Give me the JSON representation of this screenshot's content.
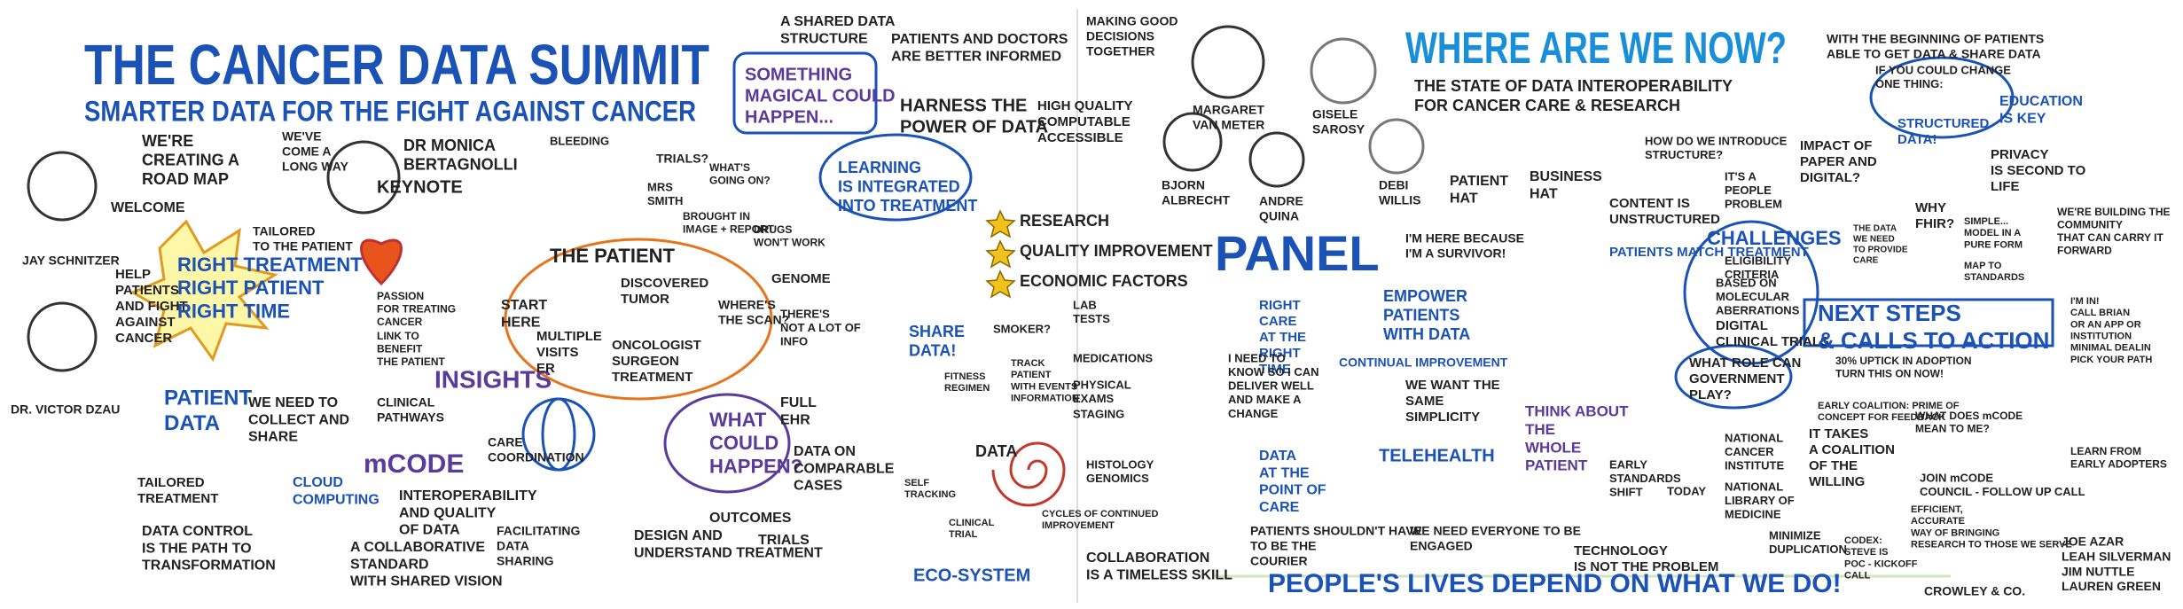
{
  "title": "THE CANCER DATA SUMMIT",
  "subtitle": "SMARTER DATA FOR THE FIGHT AGAINST CANCER",
  "section_title": "WHERE ARE WE NOW?",
  "section_subtitle": [
    "THE STATE OF DATA INTEROPERABILITY",
    "FOR CANCER CARE & RESEARCH"
  ],
  "notes": [
    [
      "WELCOME"
    ],
    [
      "JAY SCHNITZER"
    ],
    [
      "DR. VICTOR DZAU"
    ],
    [
      "WE'RE",
      "CREATING A",
      "ROAD MAP"
    ],
    [
      "WE'VE",
      "COME A",
      "LONG WAY"
    ],
    [
      "DR MONICA",
      "BERTAGNOLLI"
    ],
    [
      "KEYNOTE"
    ],
    [
      "HELP",
      "PATIENTS",
      "AND FIGHT",
      "AGAINST",
      "CANCER"
    ],
    [
      "RIGHT TREATMENT",
      "RIGHT PATIENT",
      "RIGHT TIME"
    ],
    [
      "TAILORED",
      "TO THE PATIENT"
    ],
    [
      "PATIENT",
      "DATA"
    ],
    [
      "WE NEED TO",
      "COLLECT AND",
      "SHARE"
    ],
    [
      "TAILORED",
      "TREATMENT"
    ],
    [
      "DATA CONTROL",
      "IS THE PATH TO",
      "TRANSFORMATION"
    ],
    [
      "PASSION",
      "FOR TREATING",
      "CANCER"
    ],
    [
      "LINK TO",
      "BENEFIT",
      "THE PATIENT"
    ],
    [
      "INSIGHTS"
    ],
    [
      "CLINICAL",
      "PATHWAYS"
    ],
    [
      "mCODE"
    ],
    [
      "CLOUD",
      "COMPUTING"
    ],
    [
      "CARE",
      "COORDINATION"
    ],
    [
      "INTEROPERABILITY",
      "AND QUALITY",
      "OF DATA"
    ],
    [
      "A COLLABORATIVE",
      "STANDARD",
      "WITH SHARED VISION"
    ],
    [
      "FACILITATING",
      "DATA",
      "SHARING"
    ],
    [
      "BLEEDING"
    ],
    [
      "THE PATIENT"
    ],
    [
      "TRIALS?"
    ],
    [
      "MRS",
      "SMITH"
    ],
    [
      "WHAT'S",
      "GOING ON?"
    ],
    [
      "BROUGHT IN",
      "IMAGE + REPORT"
    ],
    [
      "DRUGS",
      "WON'T WORK"
    ],
    [
      "START",
      "HERE"
    ],
    [
      "DISCOVERED",
      "TUMOR"
    ],
    [
      "MULTIPLE",
      "VISITS",
      "ER"
    ],
    [
      "ONCOLOGIST",
      "SURGEON",
      "TREATMENT"
    ],
    [
      "WHERE'S",
      "THE SCAN?"
    ],
    [
      "GENOME"
    ],
    [
      "THERE'S",
      "NOT A LOT OF",
      "INFO"
    ],
    [
      "WHAT",
      "COULD",
      "HAPPEN?"
    ],
    [
      "FULL",
      "EHR"
    ],
    [
      "DATA ON",
      "COMPARABLE",
      "CASES"
    ],
    [
      "OUTCOMES"
    ],
    [
      "TRIALS"
    ],
    [
      "DESIGN AND",
      "UNDERSTAND TREATMENT"
    ],
    [
      "A SHARED DATA",
      "STRUCTURE"
    ],
    [
      "SOMETHING",
      "MAGICAL COULD",
      "HAPPEN..."
    ],
    [
      "PATIENTS AND DOCTORS",
      "ARE BETTER INFORMED"
    ],
    [
      "HARNESS THE",
      "POWER OF DATA"
    ],
    [
      "HIGH QUALITY",
      "COMPUTABLE",
      "ACCESSIBLE"
    ],
    [
      "LEARNING",
      "IS INTEGRATED",
      "INTO TREATMENT"
    ],
    [
      "RESEARCH"
    ],
    [
      "QUALITY IMPROVEMENT"
    ],
    [
      "ECONOMIC FACTORS"
    ],
    [
      "MAKING GOOD",
      "DECISIONS",
      "TOGETHER"
    ],
    [
      "SHARE",
      "DATA!"
    ],
    [
      "SMOKER?"
    ],
    [
      "LAB",
      "TESTS"
    ],
    [
      "FITNESS",
      "REGIMEN"
    ],
    [
      "TRACK",
      "PATIENT",
      "WITH EVENTS",
      "INFORMATION"
    ],
    [
      "MEDICATIONS"
    ],
    [
      "PHYSICAL",
      "EXAMS"
    ],
    [
      "STAGING"
    ],
    [
      "DATA"
    ],
    [
      "HISTOLOGY",
      "GENOMICS"
    ],
    [
      "SELF",
      "TRACKING"
    ],
    [
      "CLINICAL",
      "TRIAL"
    ],
    [
      "CYCLES OF CONTINUED",
      "IMPROVEMENT"
    ],
    [
      "ECO-SYSTEM"
    ],
    [
      "COLLABORATION",
      "IS A TIMELESS SKILL"
    ],
    [
      "MARGARET",
      "VAN METER"
    ],
    [
      "GISELE",
      "SAROSY"
    ],
    [
      "BJORN",
      "ALBRECHT"
    ],
    [
      "ANDRE",
      "QUINA"
    ],
    [
      "DEBI",
      "WILLIS"
    ],
    [
      "PANEL"
    ],
    [
      "I'M HERE BECAUSE",
      "I'M A SURVIVOR!"
    ],
    [
      "PATIENT",
      "HAT"
    ],
    [
      "BUSINESS",
      "HAT"
    ],
    [
      "PATIENTS MATCH TREATMENT"
    ],
    [
      "RIGHT",
      "CARE",
      "AT THE",
      "RIGHT",
      "TIME"
    ],
    [
      "EMPOWER",
      "PATIENTS",
      "WITH DATA"
    ],
    [
      "CONTINUAL IMPROVEMENT"
    ],
    [
      "I NEED TO",
      "KNOW SO I CAN",
      "DELIVER WELL",
      "AND MAKE A",
      "CHANGE"
    ],
    [
      "WE WANT THE",
      "SAME",
      "SIMPLICITY"
    ],
    [
      "THINK ABOUT",
      "THE",
      "WHOLE",
      "PATIENT"
    ],
    [
      "DATA",
      "AT THE",
      "POINT OF",
      "CARE"
    ],
    [
      "TELEHEALTH"
    ],
    [
      "EARLY",
      "STANDARDS",
      "SHIFT"
    ],
    [
      "PATIENTS SHOULDN'T HAVE",
      "TO BE THE",
      "COURIER"
    ],
    [
      "WE NEED EVERYONE TO BE",
      "ENGAGED"
    ],
    [
      "TECHNOLOGY",
      "IS NOT THE PROBLEM"
    ],
    [
      "PEOPLE'S LIVES DEPEND ON WHAT WE DO!"
    ],
    [
      "HOW DO WE INTRODUCE",
      "STRUCTURE?"
    ],
    [
      "IT'S A",
      "PEOPLE",
      "PROBLEM"
    ],
    [
      "CONTENT IS",
      "UNSTRUCTURED"
    ],
    [
      "CHALLENGES"
    ],
    [
      "ELIGIBILITY",
      "CRITERIA"
    ],
    [
      "BASED ON",
      "MOLECULAR",
      "ABERRATIONS"
    ],
    [
      "DIGITAL",
      "CLINICAL TRIALS"
    ],
    [
      "WHAT ROLE CAN",
      "GOVERNMENT",
      "PLAY?"
    ],
    [
      "TODAY"
    ],
    [
      "NATIONAL",
      "CANCER",
      "INSTITUTE"
    ],
    [
      "NATIONAL",
      "LIBRARY OF",
      "MEDICINE"
    ],
    [
      "MINIMIZE",
      "DUPLICATION"
    ],
    [
      "WITH THE BEGINNING OF PATIENTS",
      "ABLE TO GET DATA & SHARE DATA"
    ],
    [
      "IF YOU COULD CHANGE",
      "ONE THING:"
    ],
    [
      "STRUCTURED",
      "DATA!"
    ],
    [
      "IMPACT OF",
      "PAPER AND",
      "DIGITAL?"
    ],
    [
      "EDUCATION",
      "IS KEY"
    ],
    [
      "PRIVACY",
      "IS SECOND TO",
      "LIFE"
    ],
    [
      "THE DATA",
      "WE NEED",
      "TO PROVIDE",
      "CARE"
    ],
    [
      "WHY",
      "FHIR?"
    ],
    [
      "SIMPLE...",
      "MODEL IN A",
      "PURE FORM"
    ],
    [
      "MAP TO",
      "STANDARDS"
    ],
    [
      "WE'RE BUILDING THE",
      "COMMUNITY",
      "THAT CAN CARRY IT",
      "FORWARD"
    ],
    [
      "NEXT STEPS",
      "& CALLS TO ACTION"
    ],
    [
      "I'M IN!",
      "CALL BRIAN",
      "OR AN APP OR",
      "INSTITUTION",
      "MINIMAL DEALIN",
      "PICK YOUR PATH"
    ],
    [
      "30% UPTICK IN ADOPTION",
      "TURN THIS ON NOW!"
    ],
    [
      "EARLY COALITION: PRIME OF",
      "CONCEPT FOR FEEDBACK"
    ],
    [
      "IT TAKES",
      "A COALITION",
      "OF THE",
      "WILLING"
    ],
    [
      "WHAT DOES mCODE",
      "MEAN TO ME?"
    ],
    [
      "LEARN FROM",
      "EARLY ADOPTERS"
    ],
    [
      "JOIN mCODE",
      "COUNCIL - FOLLOW UP CALL"
    ],
    [
      "EFFICIENT,",
      "ACCURATE",
      "WAY OF BRINGING",
      "RESEARCH TO THOSE WE SERVE"
    ],
    [
      "CODEX:",
      "STEVE IS",
      "POC - KICKOFF",
      "CALL"
    ],
    [
      "JOE AZAR",
      "LEAH SILVERMAN",
      "JIM NUTTLE",
      "LAUREN GREEN"
    ],
    [
      "CROWLEY & CO."
    ]
  ]
}
